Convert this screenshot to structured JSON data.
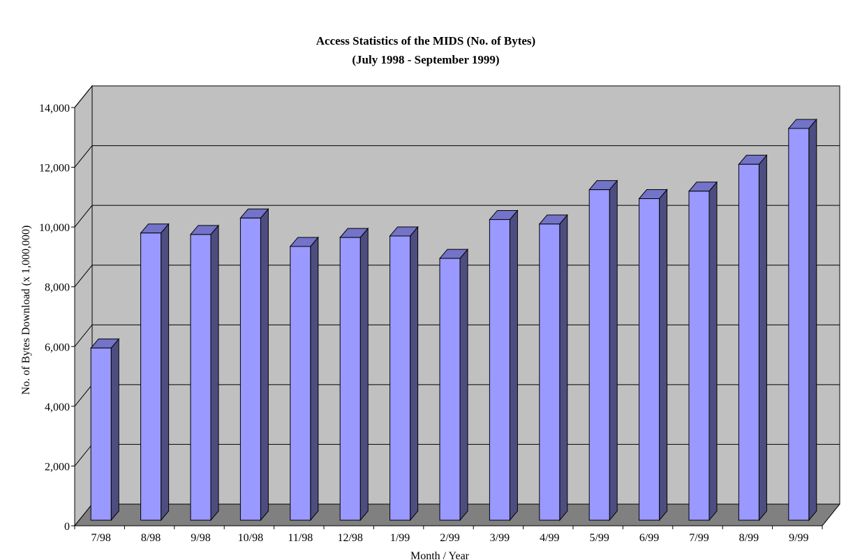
{
  "chart_data": {
    "type": "bar",
    "title": "Access Statistics of the MIDS (No. of Bytes)",
    "subtitle": "(July 1998  - September 1999)",
    "xlabel": "Month / Year",
    "ylabel": "No. of Bytes Download (x 1,000,000)",
    "categories": [
      "7/98",
      "8/98",
      "9/98",
      "10/98",
      "11/98",
      "12/98",
      "1/99",
      "2/99",
      "3/99",
      "4/99",
      "5/99",
      "6/99",
      "7/99",
      "8/99",
      "9/99"
    ],
    "values": [
      5950,
      9800,
      9750,
      10300,
      9350,
      9650,
      9700,
      8950,
      10250,
      10100,
      11250,
      10950,
      11200,
      12100,
      13300
    ],
    "ylim": [
      0,
      14000
    ],
    "y_ticks": [
      0,
      2000,
      4000,
      6000,
      8000,
      10000,
      12000,
      14000
    ],
    "y_tick_labels": [
      "0",
      "2,000",
      "4,000",
      "6,000",
      "8,000",
      "10,000",
      "12,000",
      "14,000"
    ],
    "grid": true,
    "legend": "none",
    "style": "3d",
    "colors": {
      "bar_front": "#9999ff",
      "bar_side": "#4d4d80",
      "bar_top": "#7373c8",
      "wall": "#c0c0c0",
      "floor": "#808080",
      "grid": "#000000"
    }
  }
}
